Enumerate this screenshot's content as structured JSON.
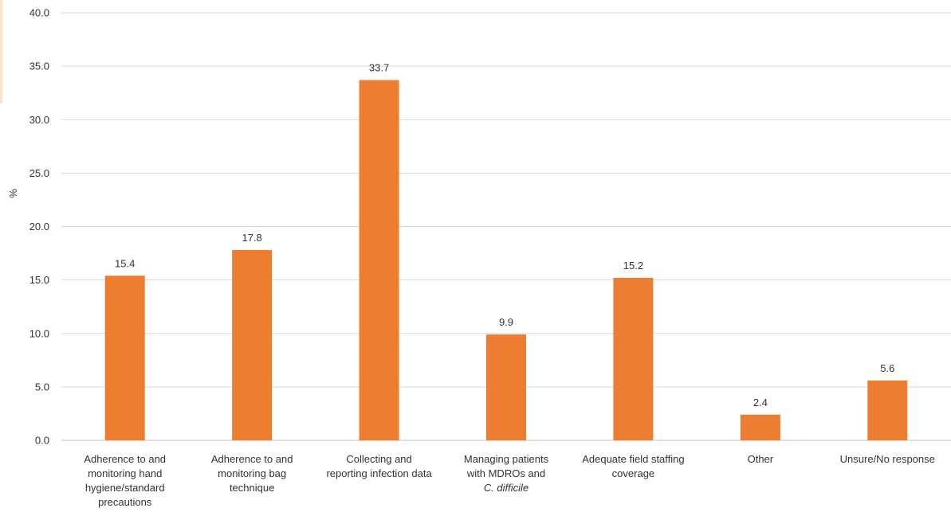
{
  "chart_data": {
    "type": "bar",
    "title": "",
    "xlabel": "",
    "ylabel": "%",
    "ylim": [
      0,
      40
    ],
    "yticks": [
      "0.0",
      "5.0",
      "10.0",
      "15.0",
      "20.0",
      "25.0",
      "30.0",
      "35.0",
      "40.0"
    ],
    "grid": true,
    "legend": "none",
    "bar_color": "#ED7D31",
    "categories": [
      [
        "Adherence to and",
        "monitoring hand",
        "hygiene/standard",
        "precautions"
      ],
      [
        "Adherence to and",
        "monitoring bag",
        "technique"
      ],
      [
        "Collecting and",
        "reporting infection data"
      ],
      [
        "Managing patients",
        "with MDROs and",
        "C. difficile"
      ],
      [
        "Adequate field staffing",
        "coverage"
      ],
      [
        "Other"
      ],
      [
        "Unsure/No response"
      ]
    ],
    "italic_lines": [
      "C. difficile"
    ],
    "values": [
      15.4,
      17.8,
      33.7,
      9.9,
      15.2,
      2.4,
      5.6
    ],
    "data_labels": [
      "15.4",
      "17.8",
      "33.7",
      "9.9",
      "15.2",
      "2.4",
      "5.6"
    ]
  }
}
